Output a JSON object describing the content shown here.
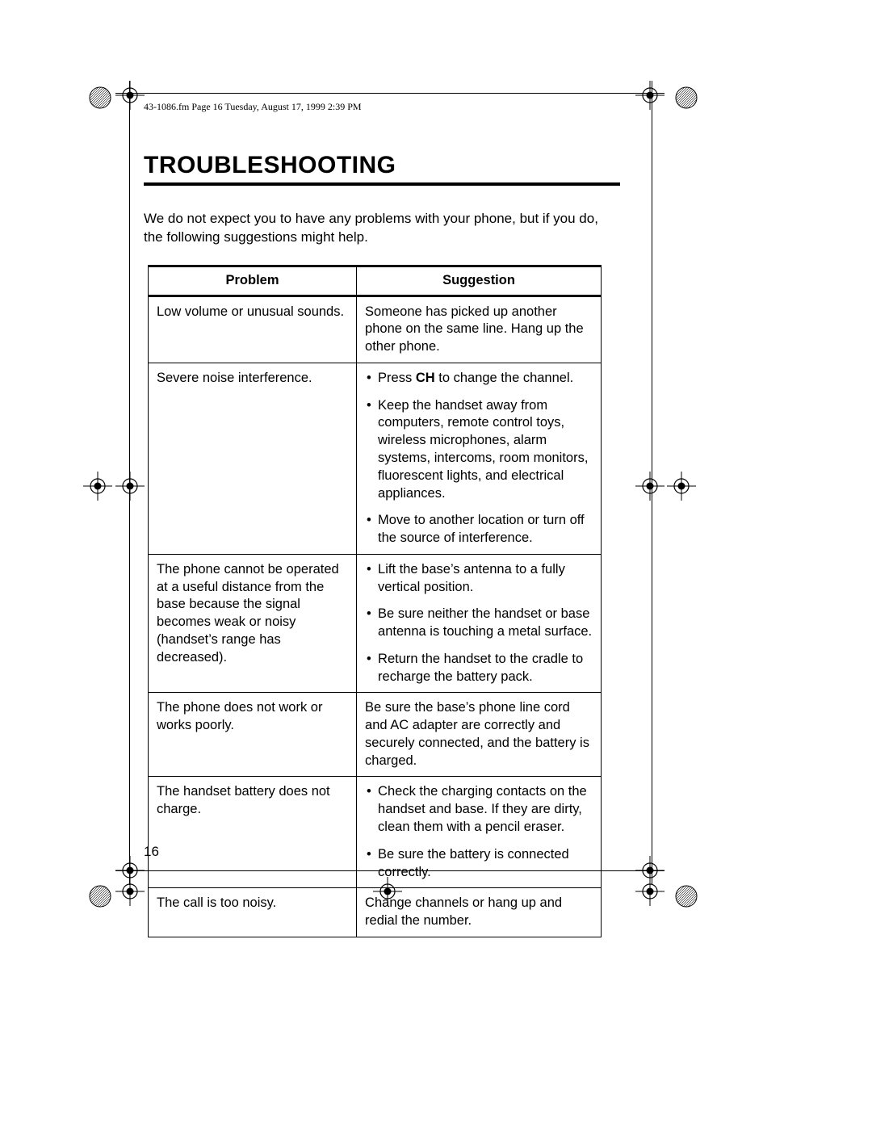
{
  "meta": {
    "header": "43-1086.fm  Page 16  Tuesday, August 17, 1999  2:39 PM"
  },
  "title": "TROUBLESHOOTING",
  "intro": "We do not expect you to have any problems with your phone, but if you do, the following suggestions might help.",
  "table": {
    "headers": {
      "problem": "Problem",
      "suggestion": "Suggestion"
    },
    "rows": [
      {
        "problem": "Low volume or unusual sounds.",
        "suggestion_plain": "Someone has picked up another phone on the same line. Hang up the other phone."
      },
      {
        "problem": "Severe noise interference.",
        "suggestion_list": [
          {
            "prefix": "Press ",
            "bold": "CH",
            "suffix": " to change the channel."
          },
          {
            "text": "Keep the handset away from computers, remote control toys, wireless microphones, alarm systems, intercoms, room monitors, fluorescent lights, and electrical appliances."
          },
          {
            "text": "Move to another location or turn off the source of interference."
          }
        ]
      },
      {
        "problem": "The phone cannot be operated at a useful distance from the base because the signal becomes weak or noisy (handset’s range has decreased).",
        "suggestion_list": [
          {
            "text": "Lift the base’s antenna to a fully vertical position."
          },
          {
            "text": "Be sure neither the handset or base antenna is touching a metal surface."
          },
          {
            "text": "Return the handset to the cradle to recharge the battery pack."
          }
        ]
      },
      {
        "problem": "The phone does not work or works poorly.",
        "suggestion_plain": "Be sure the base’s phone line cord and AC adapter are correctly and securely connected, and the battery is charged."
      },
      {
        "problem": "The handset battery does not charge.",
        "suggestion_list": [
          {
            "text": "Check the charging contacts on the handset and base. If they are dirty, clean them with a pencil eraser."
          },
          {
            "text": "Be sure the battery is connected correctly."
          }
        ]
      },
      {
        "problem": "The call is too noisy.",
        "suggestion_plain": "Change channels or hang up and redial the number."
      }
    ]
  },
  "page_number": "16",
  "colors": {
    "text": "#000000",
    "background": "#ffffff",
    "rule": "#000000"
  },
  "fonts": {
    "body_pt": 12,
    "title_pt": 22,
    "meta_pt": 9
  }
}
